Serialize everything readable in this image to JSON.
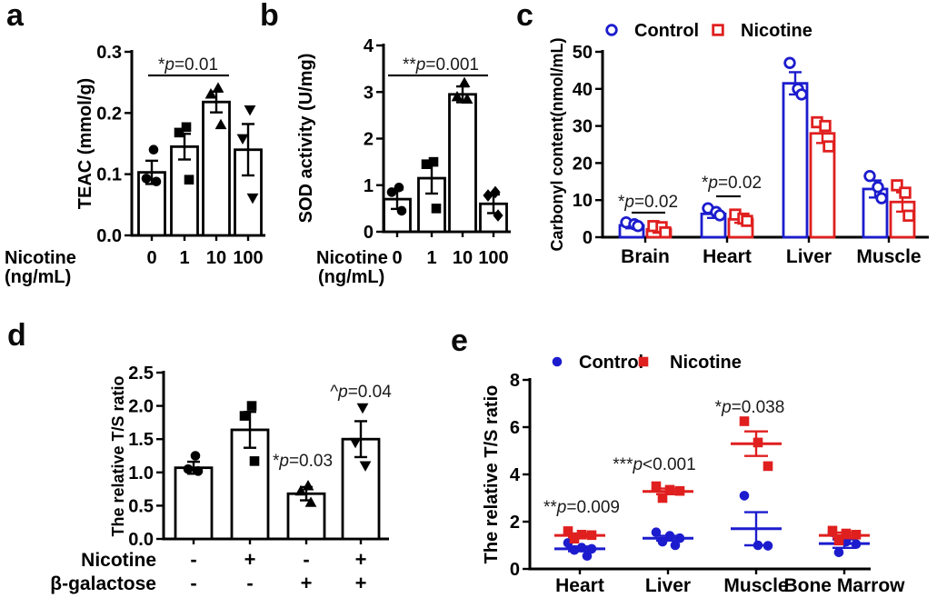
{
  "figure": {
    "background": "#ffffff",
    "panels": [
      {
        "label": "a"
      },
      {
        "label": "b"
      },
      {
        "label": "c"
      },
      {
        "label": "d"
      },
      {
        "label": "e"
      }
    ]
  },
  "colors": {
    "control_blue": "#1C1CCE",
    "nicotine_red": "#E01F1F",
    "axis_black": "#000000",
    "annotation_gray": "#1a1a1a"
  },
  "chart_data": [
    {
      "panel": "a",
      "type": "bar",
      "title": "",
      "ylabel": "TEAC (mmol/g)",
      "ylim": [
        0,
        0.3
      ],
      "yticks": [
        "0.0",
        "0.1",
        "0.2",
        "0.3"
      ],
      "xlabel_lines": [
        "Nicotine",
        "(ng/mL)"
      ],
      "categories": [
        "0",
        "1",
        "10",
        "100"
      ],
      "bars": [
        {
          "mean": 0.103,
          "err": 0.019,
          "marker": "circle",
          "points": [
            0.14,
            0.093,
            0.088
          ]
        },
        {
          "mean": 0.145,
          "err": 0.021,
          "marker": "square",
          "points": [
            0.177,
            0.168,
            0.091
          ]
        },
        {
          "mean": 0.218,
          "err": 0.017,
          "marker": "triangle-up",
          "points": [
            0.241,
            0.231,
            0.181
          ]
        },
        {
          "mean": 0.14,
          "err": 0.042,
          "marker": "triangle-down",
          "points": [
            0.205,
            0.158,
            0.061
          ]
        }
      ],
      "annotations": [
        {
          "pre": "*",
          "it": "p",
          "post": "=0.01",
          "spans": "0 to 10 ng/mL"
        }
      ]
    },
    {
      "panel": "b",
      "type": "bar",
      "title": "",
      "ylabel": "SOD activity (U/mg)",
      "ylim": [
        0,
        4
      ],
      "yticks": [
        "0",
        "1",
        "2",
        "3",
        "4"
      ],
      "xlabel_lines": [
        "Nicotine",
        "(ng/mL)"
      ],
      "categories": [
        "0",
        "1",
        "10",
        "100"
      ],
      "bars": [
        {
          "mean": 0.7,
          "err": 0.21,
          "marker": "circle",
          "points": [
            0.95,
            0.85,
            0.45
          ]
        },
        {
          "mean": 1.15,
          "err": 0.33,
          "marker": "square",
          "points": [
            1.5,
            1.45,
            0.5
          ]
        },
        {
          "mean": 2.95,
          "err": 0.17,
          "marker": "triangle-up",
          "points": [
            3.2,
            2.9,
            2.85
          ]
        },
        {
          "mean": 0.6,
          "err": 0.2,
          "marker": "diamond",
          "points": [
            0.85,
            0.78,
            0.35
          ]
        }
      ],
      "annotations": [
        {
          "pre": "**",
          "it": "p",
          "post": "=0.001",
          "spans": "0 to 10 ng/mL"
        }
      ]
    },
    {
      "panel": "c",
      "type": "grouped_bar",
      "title": "",
      "ylabel": "Carbonyl content(nmol/mL)",
      "ylim": [
        0,
        50
      ],
      "yticks": [
        "0",
        "10",
        "20",
        "30",
        "40",
        "50"
      ],
      "categories": [
        "Brain",
        "Heart",
        "Liver",
        "Muscle"
      ],
      "legend": [
        {
          "label": "Control",
          "marker": "circle-open",
          "color": "blue"
        },
        {
          "label": "Nicotine",
          "marker": "square-open",
          "color": "red"
        }
      ],
      "series": [
        {
          "name": "Control",
          "color": "blue",
          "marker": "circle-open",
          "means": [
            3.2,
            6.3,
            41.5,
            13.0
          ],
          "errs": [
            0.8,
            1.1,
            3.0,
            2.3
          ],
          "points": [
            [
              4.0,
              3.5,
              3.0
            ],
            [
              7.8,
              6.8,
              5.9
            ],
            [
              47.0,
              40.0,
              38.5
            ],
            [
              16.5,
              13.5,
              10.5
            ]
          ]
        },
        {
          "name": "Nicotine",
          "color": "red",
          "marker": "square-open",
          "means": [
            2.1,
            4.9,
            28.0,
            9.5
          ],
          "errs": [
            0.9,
            1.0,
            2.6,
            2.6
          ],
          "points": [
            [
              3.0,
              2.7,
              1.3
            ],
            [
              6.1,
              5.0,
              4.4
            ],
            [
              31.0,
              30.0,
              24.5
            ],
            [
              14.0,
              12.0,
              5.8
            ]
          ]
        }
      ],
      "annotations": [
        {
          "pre": "*",
          "it": "p",
          "post": "=0.02",
          "category": "Brain"
        },
        {
          "pre": "*",
          "it": "p",
          "post": "=0.02",
          "category": "Heart"
        }
      ]
    },
    {
      "panel": "d",
      "type": "bar",
      "title": "",
      "ylabel": "The relative T/S ratio",
      "ylim": [
        0,
        2.5
      ],
      "yticks": [
        "0.0",
        "0.5",
        "1.0",
        "1.5",
        "2.0",
        "2.5"
      ],
      "categories": [],
      "matrix_rows": [
        {
          "label": "Nicotine",
          "values": [
            "-",
            "+",
            "-",
            "+"
          ]
        },
        {
          "label": "β-galactose",
          "values": [
            "-",
            "-",
            "+",
            "+"
          ]
        }
      ],
      "bars": [
        {
          "mean": 1.07,
          "err": 0.09,
          "marker": "circle",
          "points": [
            1.25,
            1.05,
            1.02
          ]
        },
        {
          "mean": 1.64,
          "err": 0.27,
          "marker": "square",
          "points": [
            2.0,
            1.85,
            1.17
          ]
        },
        {
          "mean": 0.68,
          "err": 0.1,
          "marker": "triangle-up",
          "points": [
            0.8,
            0.72,
            0.55
          ]
        },
        {
          "mean": 1.5,
          "err": 0.27,
          "marker": "triangle-down",
          "points": [
            1.97,
            1.45,
            1.1
          ]
        }
      ],
      "annotations": [
        {
          "pre": "*",
          "it": "p",
          "post": "=0.03",
          "above_bar": 3
        },
        {
          "pre": "^",
          "it": "p",
          "post": "=0.04",
          "above_bar": 4
        }
      ]
    },
    {
      "panel": "e",
      "type": "scatter",
      "title": "",
      "ylabel": "The relative T/S ratio",
      "ylim": [
        0,
        8
      ],
      "yticks": [
        "0",
        "2",
        "4",
        "6",
        "8"
      ],
      "categories": [
        "Heart",
        "Liver",
        "Muscle",
        "Bone Marrow"
      ],
      "legend": [
        {
          "label": "Control",
          "marker": "circle",
          "color": "blue"
        },
        {
          "label": "Nicotine",
          "marker": "square",
          "color": "red"
        }
      ],
      "series": [
        {
          "name": "Control",
          "color": "blue",
          "marker": "circle",
          "means": [
            0.85,
            1.3,
            1.7,
            1.07
          ],
          "errs": [
            0.1,
            0.1,
            0.7,
            0.18
          ],
          "points": [
            [
              1.1,
              0.9,
              0.85,
              0.8,
              0.55
            ],
            [
              1.55,
              1.4,
              1.3,
              1.15,
              1.0
            ],
            [
              3.1,
              1.0,
              0.98
            ],
            [
              1.55,
              1.15,
              1.05,
              0.7
            ]
          ]
        },
        {
          "name": "Nicotine",
          "color": "red",
          "marker": "square",
          "means": [
            1.42,
            3.28,
            5.3,
            1.42
          ],
          "errs": [
            0.08,
            0.12,
            0.52,
            0.12
          ],
          "points": [
            [
              1.6,
              1.45,
              1.43,
              1.28
            ],
            [
              3.5,
              3.35,
              3.3,
              3.0
            ],
            [
              6.25,
              5.35,
              4.35
            ],
            [
              1.62,
              1.5,
              1.45,
              1.2
            ]
          ]
        }
      ],
      "annotations": [
        {
          "pre": "**",
          "it": "p",
          "post": "=0.009",
          "category": "Heart"
        },
        {
          "pre": "***",
          "it": "p",
          "post": "<0.001",
          "category": "Liver"
        },
        {
          "pre": "*",
          "it": "p",
          "post": "=0.038",
          "category": "Muscle"
        }
      ]
    }
  ]
}
